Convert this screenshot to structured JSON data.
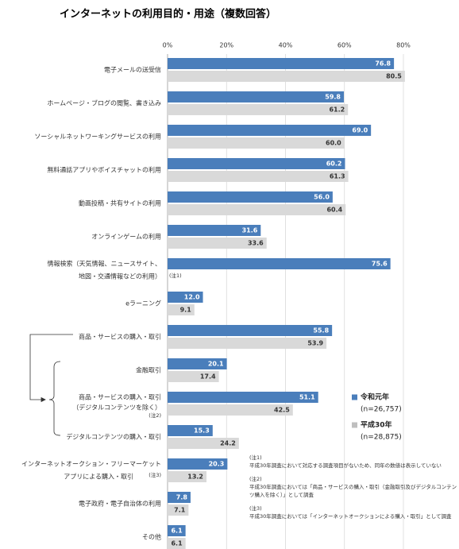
{
  "chart_data": {
    "type": "hbar",
    "title": "インターネットの利用目的・用途（複数回答）",
    "categories": [
      [
        "電子メールの送受信"
      ],
      [
        "ホームページ・ブログの閲覧、書き込み"
      ],
      [
        "ソーシャルネットワーキングサービスの利用"
      ],
      [
        "無料通話アプリやボイスチャットの利用"
      ],
      [
        "動画投稿・共有サイトの利用"
      ],
      [
        "オンラインゲームの利用"
      ],
      [
        "情報検索（天気情報、ニュースサイト、",
        "地図・交通情報などの利用）"
      ],
      [
        "eラーニング"
      ],
      [
        "商品・サービスの購入・取引"
      ],
      [
        "金融取引"
      ],
      [
        "商品・サービスの購入・取引",
        "（デジタルコンテンツを除く）"
      ],
      [
        "デジタルコンテンツの購入・取引"
      ],
      [
        "インターネットオークション・フリーマーケット",
        "アプリによる購入・取引"
      ],
      [
        "電子政府・電子自治体の利用"
      ],
      [
        "その他"
      ]
    ],
    "series": [
      {
        "name": "令和元年",
        "sample": "(n=26,757)",
        "color": "#4a7ebb",
        "values": [
          76.8,
          59.8,
          69.0,
          60.2,
          56.0,
          31.6,
          75.6,
          12.0,
          55.8,
          20.1,
          51.1,
          15.3,
          20.3,
          7.8,
          6.1
        ],
        "value_labels": [
          "76.8",
          "59.8",
          "69.0",
          "60.2",
          "56.0",
          "31.6",
          "75.6",
          "12.0",
          "55.8",
          "20.1",
          "51.1",
          "15.3",
          "20.3",
          "7.8",
          "6.1"
        ]
      },
      {
        "name": "平成30年",
        "sample": "(n=28,875)",
        "color": "#d9d9d9",
        "values": [
          80.5,
          61.2,
          60.0,
          61.3,
          60.4,
          33.6,
          null,
          9.1,
          53.9,
          17.4,
          42.5,
          24.2,
          13.2,
          7.1,
          6.1
        ],
        "value_labels": [
          "80.5",
          "61.2",
          "60.0",
          "61.3",
          "60.4",
          "33.6",
          null,
          "9.1",
          "53.9",
          "17.4",
          "42.5",
          "24.2",
          "13.2",
          "7.1",
          "6.1"
        ]
      }
    ],
    "xlim": [
      0,
      80
    ],
    "xticks": [
      {
        "value": 0,
        "label": "0%"
      },
      {
        "value": 20,
        "label": "20%"
      },
      {
        "value": 40,
        "label": "40%"
      },
      {
        "value": 60,
        "label": "60%"
      },
      {
        "value": 80,
        "label": "80%"
      }
    ],
    "grid": true,
    "notes": [
      "(注1)",
      "(注2)",
      "(注3)"
    ],
    "footnotes": [
      {
        "label": "(注1)",
        "lines": [
          "平成30年調査において対応する調査項目がないため、同年の数値は表示していない"
        ]
      },
      {
        "label": "(注2)",
        "lines": [
          "平成30年調査においては「商品・サービスの購入・取引（金融取引及びデジタルコンテン",
          "ツ購入を除く）」として調査"
        ]
      },
      {
        "label": "(注3)",
        "lines": [
          "平成30年調査においては「インターネットオークションによる購入・取引」として調査"
        ]
      }
    ]
  }
}
